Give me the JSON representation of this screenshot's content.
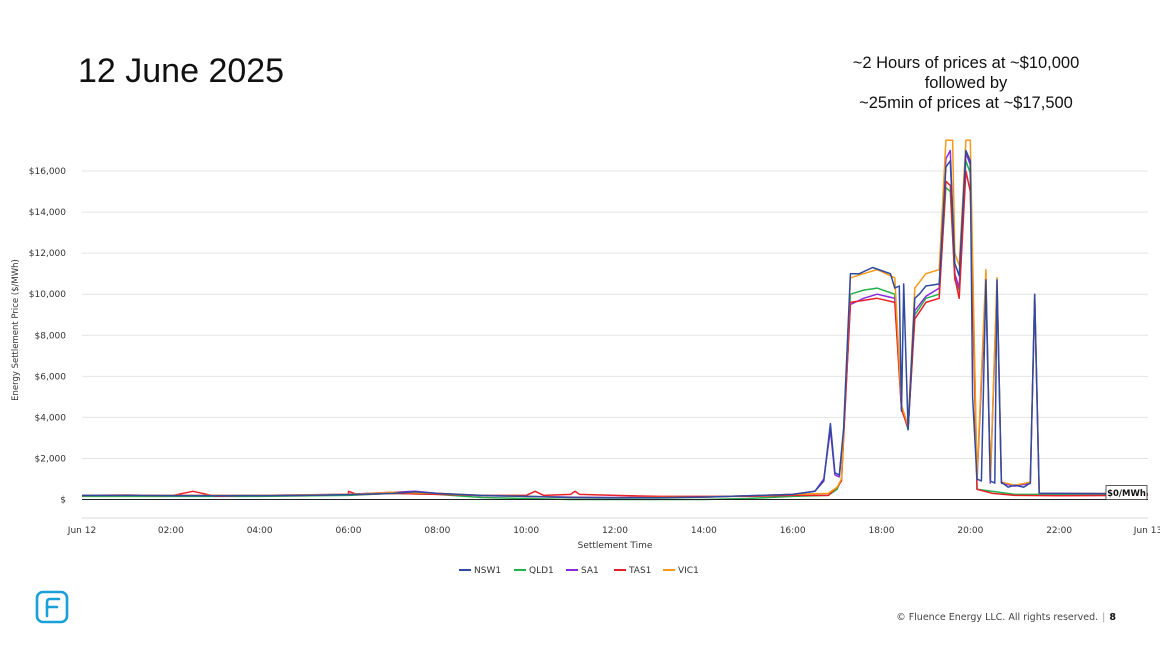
{
  "slide": {
    "title": "12 June 2025",
    "annotation": [
      "~2 Hours of prices at ~$10,000",
      "followed by",
      "~25min of prices at ~$17,500"
    ],
    "footer_copyright": "© Fluence Energy LLC. All rights reserved.",
    "footer_separator": "|",
    "page_number": "8",
    "logo_icon": "fluence-logo-icon"
  },
  "chart_data": {
    "type": "line",
    "xlabel": "Settlement Time",
    "ylabel": "Energy Settlement Price ($/MWh)",
    "x_ticks": [
      "Jun 12",
      "02:00",
      "04:00",
      "06:00",
      "08:00",
      "10:00",
      "12:00",
      "14:00",
      "16:00",
      "18:00",
      "20:00",
      "22:00",
      "Jun 13"
    ],
    "x_range_hours": [
      0,
      24
    ],
    "y_ticks": [
      "$",
      "$2,000",
      "$4,000",
      "$6,000",
      "$8,000",
      "$10,000",
      "$12,000",
      "$14,000",
      "$16,000"
    ],
    "ylim": [
      -900,
      18000
    ],
    "grid": true,
    "legend_position": "bottom",
    "end_label": "$0/MWh",
    "series": [
      {
        "name": "NSW1",
        "color": "#2f4aa0",
        "points": [
          [
            0,
            200
          ],
          [
            1,
            200
          ],
          [
            2,
            190
          ],
          [
            3,
            180
          ],
          [
            4,
            190
          ],
          [
            5,
            200
          ],
          [
            6,
            240
          ],
          [
            7,
            300
          ],
          [
            7.5,
            380
          ],
          [
            8,
            300
          ],
          [
            9,
            200
          ],
          [
            10,
            150
          ],
          [
            11,
            100
          ],
          [
            12,
            80
          ],
          [
            13,
            90
          ],
          [
            14,
            120
          ],
          [
            15,
            180
          ],
          [
            16,
            250
          ],
          [
            16.5,
            400
          ],
          [
            16.7,
            900
          ],
          [
            16.85,
            3700
          ],
          [
            16.95,
            1300
          ],
          [
            17.05,
            1200
          ],
          [
            17.15,
            3500
          ],
          [
            17.3,
            11000
          ],
          [
            17.5,
            11000
          ],
          [
            17.8,
            11300
          ],
          [
            18.2,
            11000
          ],
          [
            18.3,
            10300
          ],
          [
            18.4,
            10400
          ],
          [
            18.45,
            4300
          ],
          [
            18.5,
            10500
          ],
          [
            18.6,
            3400
          ],
          [
            18.75,
            9800
          ],
          [
            18.85,
            10000
          ],
          [
            19.0,
            10400
          ],
          [
            19.3,
            10500
          ],
          [
            19.45,
            16200
          ],
          [
            19.55,
            16500
          ],
          [
            19.65,
            11500
          ],
          [
            19.75,
            10900
          ],
          [
            19.9,
            17000
          ],
          [
            20.0,
            16500
          ],
          [
            20.05,
            5000
          ],
          [
            20.15,
            1000
          ],
          [
            20.25,
            900
          ],
          [
            20.35,
            10700
          ],
          [
            20.45,
            900
          ],
          [
            20.55,
            800
          ],
          [
            20.6,
            10700
          ],
          [
            20.7,
            850
          ],
          [
            20.85,
            600
          ],
          [
            21.0,
            700
          ],
          [
            21.2,
            600
          ],
          [
            21.35,
            800
          ],
          [
            21.45,
            10000
          ],
          [
            21.55,
            300
          ],
          [
            22,
            300
          ],
          [
            23,
            290
          ],
          [
            24,
            290
          ]
        ]
      },
      {
        "name": "QLD1",
        "color": "#23b14d",
        "points": [
          [
            0,
            150
          ],
          [
            2,
            150
          ],
          [
            4,
            150
          ],
          [
            6,
            200
          ],
          [
            7,
            300
          ],
          [
            8,
            250
          ],
          [
            9,
            100
          ],
          [
            10,
            50
          ],
          [
            11,
            0
          ],
          [
            12,
            0
          ],
          [
            13,
            0
          ],
          [
            14,
            0
          ],
          [
            15,
            50
          ],
          [
            16,
            150
          ],
          [
            16.8,
            200
          ],
          [
            17.0,
            500
          ],
          [
            17.1,
            1000
          ],
          [
            17.3,
            10000
          ],
          [
            17.6,
            10200
          ],
          [
            17.9,
            10300
          ],
          [
            18.3,
            10000
          ],
          [
            18.45,
            4500
          ],
          [
            18.6,
            3400
          ],
          [
            18.75,
            9000
          ],
          [
            19.0,
            9800
          ],
          [
            19.3,
            10000
          ],
          [
            19.45,
            15200
          ],
          [
            19.55,
            15000
          ],
          [
            19.65,
            10700
          ],
          [
            19.75,
            10200
          ],
          [
            19.9,
            16500
          ],
          [
            20.0,
            15900
          ],
          [
            20.15,
            500
          ],
          [
            21,
            250
          ],
          [
            22,
            250
          ],
          [
            24,
            250
          ]
        ]
      },
      {
        "name": "SA1",
        "color": "#8a2be2",
        "points": [
          [
            0,
            200
          ],
          [
            2,
            210
          ],
          [
            4,
            200
          ],
          [
            6,
            260
          ],
          [
            7,
            350
          ],
          [
            7.5,
            400
          ],
          [
            8,
            300
          ],
          [
            9,
            180
          ],
          [
            10,
            150
          ],
          [
            11,
            120
          ],
          [
            12,
            100
          ],
          [
            14,
            120
          ],
          [
            15,
            180
          ],
          [
            16,
            250
          ],
          [
            16.5,
            400
          ],
          [
            16.7,
            1000
          ],
          [
            16.85,
            3400
          ],
          [
            16.95,
            1200
          ],
          [
            17.05,
            1100
          ],
          [
            17.15,
            3300
          ],
          [
            17.3,
            9500
          ],
          [
            17.6,
            9800
          ],
          [
            17.9,
            10000
          ],
          [
            18.3,
            9800
          ],
          [
            18.45,
            4400
          ],
          [
            18.6,
            3500
          ],
          [
            18.75,
            9200
          ],
          [
            19.0,
            9900
          ],
          [
            19.3,
            10300
          ],
          [
            19.45,
            16600
          ],
          [
            19.55,
            17000
          ],
          [
            19.65,
            11000
          ],
          [
            19.75,
            10300
          ],
          [
            19.9,
            16900
          ],
          [
            20.0,
            16300
          ],
          [
            20.15,
            900
          ],
          [
            20.35,
            10500
          ],
          [
            20.45,
            800
          ],
          [
            20.6,
            10500
          ],
          [
            20.7,
            800
          ],
          [
            21,
            650
          ],
          [
            21.35,
            800
          ],
          [
            21.45,
            9800
          ],
          [
            21.55,
            300
          ],
          [
            24,
            280
          ]
        ]
      },
      {
        "name": "TAS1",
        "color": "#e8202a",
        "points": [
          [
            0,
            200
          ],
          [
            1,
            220
          ],
          [
            2,
            180
          ],
          [
            2.5,
            400
          ],
          [
            3,
            160
          ],
          [
            4,
            200
          ],
          [
            5,
            200
          ],
          [
            6,
            250
          ],
          [
            6,
            400
          ],
          [
            6.2,
            240
          ],
          [
            7,
            300
          ],
          [
            8,
            250
          ],
          [
            9,
            200
          ],
          [
            10,
            200
          ],
          [
            10.2,
            400
          ],
          [
            10.4,
            200
          ],
          [
            11,
            250
          ],
          [
            11.1,
            400
          ],
          [
            11.2,
            250
          ],
          [
            12,
            200
          ],
          [
            13,
            150
          ],
          [
            14,
            150
          ],
          [
            15,
            150
          ],
          [
            16,
            200
          ],
          [
            16.8,
            200
          ],
          [
            17.0,
            600
          ],
          [
            17.1,
            900
          ],
          [
            17.3,
            9600
          ],
          [
            17.6,
            9700
          ],
          [
            17.9,
            9800
          ],
          [
            18.3,
            9600
          ],
          [
            18.45,
            4400
          ],
          [
            18.6,
            3500
          ],
          [
            18.75,
            8800
          ],
          [
            19.0,
            9600
          ],
          [
            19.3,
            9800
          ],
          [
            19.45,
            15500
          ],
          [
            19.55,
            15300
          ],
          [
            19.65,
            10800
          ],
          [
            19.75,
            9800
          ],
          [
            19.9,
            16000
          ],
          [
            20.0,
            15000
          ],
          [
            20.15,
            500
          ],
          [
            20.5,
            300
          ],
          [
            21,
            200
          ],
          [
            22,
            180
          ],
          [
            24,
            200
          ]
        ]
      },
      {
        "name": "VIC1",
        "color": "#f39a1b",
        "points": [
          [
            0,
            200
          ],
          [
            2,
            200
          ],
          [
            4,
            200
          ],
          [
            6,
            250
          ],
          [
            7,
            350
          ],
          [
            8,
            300
          ],
          [
            9,
            200
          ],
          [
            10,
            150
          ],
          [
            11,
            100
          ],
          [
            12,
            90
          ],
          [
            14,
            120
          ],
          [
            15,
            180
          ],
          [
            16,
            250
          ],
          [
            16.8,
            300
          ],
          [
            17.0,
            600
          ],
          [
            17.1,
            1000
          ],
          [
            17.3,
            10800
          ],
          [
            17.6,
            11000
          ],
          [
            17.9,
            11200
          ],
          [
            18.3,
            10800
          ],
          [
            18.45,
            4600
          ],
          [
            18.6,
            3600
          ],
          [
            18.75,
            10300
          ],
          [
            19.0,
            11000
          ],
          [
            19.3,
            11200
          ],
          [
            19.45,
            17500
          ],
          [
            19.6,
            17500
          ],
          [
            19.65,
            12000
          ],
          [
            19.75,
            11400
          ],
          [
            19.9,
            17500
          ],
          [
            20.0,
            17500
          ],
          [
            20.15,
            1000
          ],
          [
            20.35,
            11200
          ],
          [
            20.45,
            900
          ],
          [
            20.6,
            10800
          ],
          [
            20.7,
            850
          ],
          [
            21,
            700
          ],
          [
            21.35,
            850
          ],
          [
            21.45,
            10000
          ],
          [
            21.55,
            300
          ],
          [
            24,
            290
          ]
        ]
      }
    ]
  }
}
